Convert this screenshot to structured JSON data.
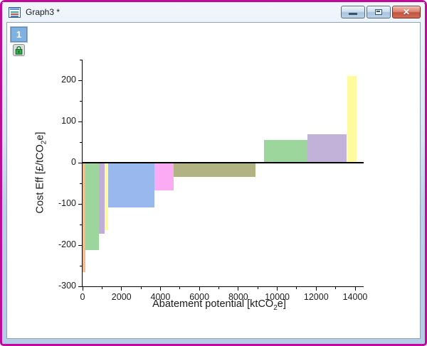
{
  "window": {
    "title": "Graph3 *",
    "border_color": "#BE0B9C",
    "icons": {
      "document_icon": "graph-document",
      "minimize": "minimize",
      "restore": "restore",
      "close_glyph": "✕"
    }
  },
  "layer_panel": {
    "layer_button_label": "1",
    "lock_icon": "locked-padlock"
  },
  "chart_data": {
    "type": "bar",
    "title": "",
    "xlabel": "Abatement potential [ktCO2e]",
    "ylabel": "Cost Eff [£/tCO2e]",
    "xlabel_parts": {
      "pre": "Abatement potential [ktCO",
      "sub": "2",
      "post": "e]"
    },
    "ylabel_parts": {
      "pre": "Cost Eff [£/tCO",
      "sub": "2",
      "post": "e]"
    },
    "xlim": [
      0,
      14500
    ],
    "ylim": [
      -300,
      250
    ],
    "x_major_ticks": [
      0,
      2000,
      4000,
      6000,
      8000,
      10000,
      12000,
      14000
    ],
    "x_minor_ticks": [
      1000,
      3000,
      5000,
      7000,
      9000,
      11000,
      13000
    ],
    "y_major_ticks": [
      200,
      100,
      0,
      -100,
      -200,
      -300
    ],
    "y_minor_ticks": [
      250,
      150,
      50,
      -50,
      -150,
      -250
    ],
    "grid": false,
    "axis_color": "#000000",
    "bars": [
      {
        "x_start": 0,
        "x_end": 130,
        "value": -265,
        "color": "#F2BE8E"
      },
      {
        "x_start": 130,
        "x_end": 830,
        "value": -212,
        "color": "#9CD69C"
      },
      {
        "x_start": 830,
        "x_end": 1125,
        "value": -172,
        "color": "#BFAFD8"
      },
      {
        "x_start": 1125,
        "x_end": 1330,
        "value": -164,
        "color": "#FDFB9E"
      },
      {
        "x_start": 1330,
        "x_end": 3710,
        "value": -109,
        "color": "#99B8EE"
      },
      {
        "x_start": 3710,
        "x_end": 4690,
        "value": -68,
        "color": "#FBABF4"
      },
      {
        "x_start": 4690,
        "x_end": 8890,
        "value": -35,
        "color": "#B1B383"
      },
      {
        "x_start": 9330,
        "x_end": 11560,
        "value": 55,
        "color": "#9CD69C"
      },
      {
        "x_start": 11560,
        "x_end": 13580,
        "value": 69,
        "color": "#C2B2DA"
      },
      {
        "x_start": 13580,
        "x_end": 14090,
        "value": 210,
        "color": "#FDFB9E"
      }
    ]
  }
}
